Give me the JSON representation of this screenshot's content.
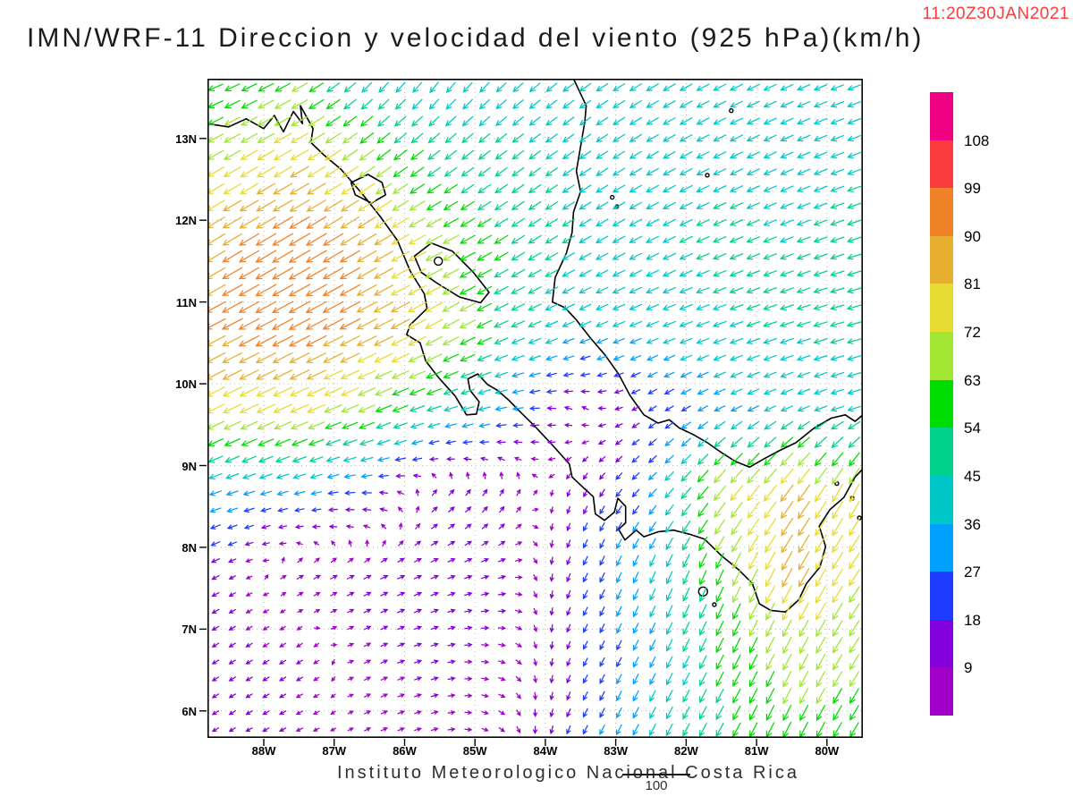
{
  "chart_data": {
    "type": "vector_field_map",
    "title": "IMN/WRF-11 Direccion y velocidad del viento (925 hPa)(km/h)",
    "timestamp": "11:20Z30JAN2021",
    "timestamp_color": "#fa3c3c",
    "pressure_level": "925 hPa",
    "units": "km/h",
    "footer": "Instituto Meteorologico Nacional Costa Rica",
    "lon_range": [
      -88.8,
      -79.49
    ],
    "lat_range": [
      5.67,
      13.73
    ],
    "x_ticks": [
      {
        "label": "88W",
        "lon": -88
      },
      {
        "label": "87W",
        "lon": -87
      },
      {
        "label": "86W",
        "lon": -86
      },
      {
        "label": "85W",
        "lon": -85
      },
      {
        "label": "84W",
        "lon": -84
      },
      {
        "label": "83W",
        "lon": -83
      },
      {
        "label": "82W",
        "lon": -82
      },
      {
        "label": "81W",
        "lon": -81
      },
      {
        "label": "80W",
        "lon": -80
      }
    ],
    "y_ticks": [
      {
        "label": "13N",
        "lat": 13
      },
      {
        "label": "12N",
        "lat": 12
      },
      {
        "label": "11N",
        "lat": 11
      },
      {
        "label": "10N",
        "lat": 10
      },
      {
        "label": "9N",
        "lat": 9
      },
      {
        "label": "8N",
        "lat": 8
      },
      {
        "label": "7N",
        "lat": 7
      },
      {
        "label": "6N",
        "lat": 6
      }
    ],
    "grid_lons": [
      -88,
      -87,
      -86,
      -85,
      -84,
      -83,
      -82,
      -81,
      -80
    ],
    "grid_lats": [
      6,
      7,
      8,
      9,
      10,
      11,
      12,
      13
    ],
    "colorbar": {
      "levels": [
        9,
        18,
        27,
        36,
        45,
        54,
        63,
        72,
        81,
        90,
        99,
        108
      ],
      "colors": [
        "#a000c8",
        "#8200dc",
        "#1e3cff",
        "#00a0ff",
        "#00c8c8",
        "#00d28c",
        "#00dc00",
        "#a0e632",
        "#e6dc32",
        "#e6af2d",
        "#f08228",
        "#fa3c3c",
        "#f00082"
      ],
      "labels_top_to_bottom": [
        "108",
        "99",
        "90",
        "81",
        "72",
        "63",
        "54",
        "45",
        "36",
        "27",
        "18",
        "9"
      ]
    },
    "reference_vector": {
      "label": "100",
      "speed_kmh": 100
    },
    "arrow_grid": {
      "cols": 39,
      "rows": 39
    },
    "wind_grid": {
      "lons": [
        -88.8,
        -87.5,
        -86.5,
        -85.5,
        -84.5,
        -83.5,
        -82.5,
        -81.5,
        -80.5,
        -79.5
      ],
      "lats": [
        5.7,
        6.7,
        7.7,
        8.7,
        9.7,
        10.7,
        11.7,
        12.7,
        13.7
      ],
      "u": [
        [
          -8,
          -8,
          6,
          8,
          5,
          -10,
          -18,
          -25,
          -28,
          -30
        ],
        [
          -10,
          -8,
          8,
          10,
          8,
          -8,
          -15,
          -25,
          -30,
          -35
        ],
        [
          -15,
          10,
          12,
          12,
          10,
          -10,
          -15,
          -25,
          -40,
          -40
        ],
        [
          -35,
          -30,
          -22,
          8,
          5,
          -5,
          -20,
          -45,
          -50,
          -35
        ],
        [
          -70,
          -70,
          -60,
          -45,
          -30,
          -8,
          -15,
          -30,
          -35,
          -40
        ],
        [
          -80,
          -85,
          -80,
          -65,
          -45,
          -35,
          -38,
          -42,
          -44,
          -45
        ],
        [
          -75,
          -85,
          -75,
          -60,
          -45,
          -38,
          -40,
          -42,
          -42,
          -44
        ],
        [
          -60,
          -70,
          -55,
          -40,
          -38,
          -36,
          -38,
          -40,
          -40,
          -42
        ],
        [
          -50,
          -55,
          -28,
          -25,
          -30,
          -35,
          -38,
          -40,
          -40,
          -42
        ]
      ],
      "v": [
        [
          -5,
          -4,
          3,
          2,
          -5,
          -20,
          -35,
          -45,
          -55,
          -50
        ],
        [
          -6,
          -5,
          4,
          3,
          -3,
          -15,
          -30,
          -50,
          -60,
          -55
        ],
        [
          -8,
          6,
          6,
          5,
          3,
          -20,
          -35,
          -55,
          -75,
          -60
        ],
        [
          -12,
          -8,
          0,
          8,
          10,
          -12,
          -20,
          -55,
          -65,
          -70
        ],
        [
          -35,
          -30,
          -25,
          -15,
          -5,
          5,
          -10,
          -15,
          -15,
          -12
        ],
        [
          -42,
          -45,
          -40,
          -35,
          -20,
          -15,
          -15,
          -15,
          -14,
          -12
        ],
        [
          -45,
          -50,
          -45,
          -30,
          -28,
          -22,
          -20,
          -18,
          -16,
          -14
        ],
        [
          -35,
          -40,
          -40,
          -30,
          -28,
          -25,
          -22,
          -20,
          -18,
          -16
        ],
        [
          -20,
          -30,
          -30,
          -32,
          -28,
          -25,
          -22,
          -20,
          -18,
          -15
        ]
      ]
    },
    "coastlines": [
      {
        "name": "pacific-coast",
        "closed": false,
        "points": [
          [
            -88.8,
            13.18
          ],
          [
            -88.5,
            13.14
          ],
          [
            -88.25,
            13.24
          ],
          [
            -88.0,
            13.12
          ],
          [
            -87.85,
            13.28
          ],
          [
            -87.72,
            13.08
          ],
          [
            -87.58,
            13.33
          ],
          [
            -87.45,
            13.18
          ],
          [
            -87.48,
            13.4
          ],
          [
            -87.3,
            13.12
          ],
          [
            -87.33,
            12.95
          ],
          [
            -87.15,
            12.8
          ],
          [
            -86.9,
            12.62
          ],
          [
            -86.6,
            12.32
          ],
          [
            -86.35,
            12.05
          ],
          [
            -86.1,
            11.75
          ],
          [
            -85.92,
            11.38
          ],
          [
            -85.72,
            11.1
          ],
          [
            -85.68,
            10.92
          ],
          [
            -85.92,
            10.72
          ],
          [
            -85.97,
            10.6
          ],
          [
            -85.78,
            10.5
          ],
          [
            -85.7,
            10.28
          ],
          [
            -85.52,
            10.08
          ],
          [
            -85.28,
            9.85
          ],
          [
            -85.12,
            9.62
          ],
          [
            -84.98,
            9.63
          ],
          [
            -84.94,
            9.78
          ],
          [
            -85.07,
            9.92
          ],
          [
            -85.1,
            10.06
          ],
          [
            -84.96,
            10.12
          ],
          [
            -84.82,
            9.99
          ],
          [
            -84.68,
            9.92
          ],
          [
            -84.52,
            9.8
          ],
          [
            -84.35,
            9.65
          ],
          [
            -84.15,
            9.48
          ],
          [
            -83.9,
            9.25
          ],
          [
            -83.66,
            9.02
          ],
          [
            -83.62,
            8.86
          ],
          [
            -83.46,
            8.73
          ],
          [
            -83.32,
            8.62
          ],
          [
            -83.29,
            8.41
          ],
          [
            -83.16,
            8.33
          ],
          [
            -83.02,
            8.43
          ],
          [
            -82.97,
            8.6
          ],
          [
            -82.86,
            8.5
          ],
          [
            -82.86,
            8.3
          ],
          [
            -82.96,
            8.22
          ],
          [
            -82.87,
            8.09
          ],
          [
            -82.71,
            8.21
          ],
          [
            -82.6,
            8.13
          ],
          [
            -82.4,
            8.19
          ],
          [
            -82.18,
            8.21
          ],
          [
            -81.95,
            8.16
          ],
          [
            -81.74,
            8.1
          ],
          [
            -81.5,
            7.9
          ],
          [
            -81.26,
            7.73
          ],
          [
            -81.06,
            7.56
          ],
          [
            -80.96,
            7.31
          ],
          [
            -80.8,
            7.23
          ],
          [
            -80.59,
            7.21
          ],
          [
            -80.4,
            7.36
          ],
          [
            -80.29,
            7.56
          ],
          [
            -80.1,
            7.76
          ],
          [
            -80.02,
            8.01
          ],
          [
            -80.11,
            8.26
          ],
          [
            -79.96,
            8.46
          ],
          [
            -79.76,
            8.61
          ],
          [
            -79.6,
            8.86
          ],
          [
            -79.49,
            8.96
          ]
        ]
      },
      {
        "name": "caribbean-coast",
        "closed": false,
        "points": [
          [
            -83.6,
            13.73
          ],
          [
            -83.42,
            13.4
          ],
          [
            -83.44,
            13.2
          ],
          [
            -83.5,
            12.9
          ],
          [
            -83.56,
            12.6
          ],
          [
            -83.5,
            12.35
          ],
          [
            -83.6,
            12.1
          ],
          [
            -83.62,
            11.85
          ],
          [
            -83.7,
            11.6
          ],
          [
            -83.86,
            11.3
          ],
          [
            -83.9,
            11.0
          ],
          [
            -83.72,
            10.93
          ],
          [
            -83.56,
            10.78
          ],
          [
            -83.36,
            10.56
          ],
          [
            -83.16,
            10.36
          ],
          [
            -82.96,
            10.12
          ],
          [
            -82.8,
            9.86
          ],
          [
            -82.6,
            9.62
          ],
          [
            -82.4,
            9.52
          ],
          [
            -82.24,
            9.56
          ],
          [
            -82.1,
            9.46
          ],
          [
            -81.9,
            9.38
          ],
          [
            -81.7,
            9.28
          ],
          [
            -81.5,
            9.16
          ],
          [
            -81.3,
            9.05
          ],
          [
            -81.1,
            8.98
          ],
          [
            -80.9,
            9.08
          ],
          [
            -80.68,
            9.18
          ],
          [
            -80.44,
            9.28
          ],
          [
            -80.18,
            9.46
          ],
          [
            -79.94,
            9.58
          ],
          [
            -79.74,
            9.62
          ],
          [
            -79.6,
            9.54
          ],
          [
            -79.49,
            9.62
          ]
        ]
      },
      {
        "name": "lake-nicaragua",
        "closed": true,
        "points": [
          [
            -85.86,
            11.56
          ],
          [
            -85.62,
            11.72
          ],
          [
            -85.32,
            11.62
          ],
          [
            -85.02,
            11.36
          ],
          [
            -84.8,
            11.12
          ],
          [
            -84.92,
            10.99
          ],
          [
            -85.22,
            11.06
          ],
          [
            -85.52,
            11.22
          ],
          [
            -85.76,
            11.36
          ]
        ]
      },
      {
        "name": "lake-managua",
        "closed": true,
        "points": [
          [
            -86.76,
            12.46
          ],
          [
            -86.52,
            12.56
          ],
          [
            -86.32,
            12.46
          ],
          [
            -86.27,
            12.31
          ],
          [
            -86.47,
            12.21
          ],
          [
            -86.7,
            12.31
          ]
        ]
      }
    ],
    "islands": [
      [
        -85.52,
        11.5,
        4.5
      ],
      [
        -83.05,
        12.28,
        2
      ],
      [
        -82.98,
        12.17,
        1.5
      ],
      [
        -81.7,
        12.55,
        2
      ],
      [
        -81.36,
        13.34,
        2
      ],
      [
        -81.76,
        7.46,
        5
      ],
      [
        -81.6,
        7.3,
        2
      ],
      [
        -79.86,
        8.78,
        2
      ],
      [
        -79.64,
        8.6,
        2
      ],
      [
        -79.54,
        8.36,
        2
      ]
    ]
  }
}
